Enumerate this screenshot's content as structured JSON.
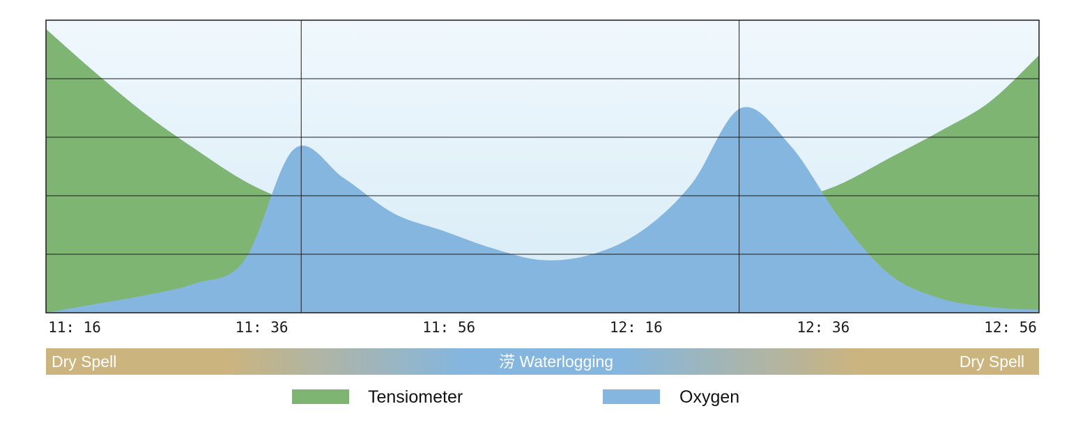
{
  "colors": {
    "plot_bg_top": "#f0f8fd",
    "plot_bg_bottom": "#d6ebf6",
    "tensiometer": "#7fb573",
    "oxygen": "#84b6df",
    "grid": "#1a1a1a",
    "band_dry": "#ccb47e",
    "band_wet": "#84b6df"
  },
  "chart_data": {
    "type": "area",
    "x_ticks": [
      "11: 16",
      "11: 36",
      "11: 56",
      "12: 16",
      "12: 36",
      "12: 56"
    ],
    "xlim": [
      0,
      100
    ],
    "ylim": [
      0,
      100
    ],
    "grid": true,
    "gridlines_y": [
      20,
      40,
      60,
      80
    ],
    "gridlines_x": [
      25.7,
      69.8
    ],
    "series": [
      {
        "name": "Tensiometer",
        "x": [
          0,
          5,
          10,
          15,
          20,
          25,
          30,
          35,
          40,
          45,
          50,
          55,
          60,
          65,
          70,
          75,
          80,
          85,
          90,
          95,
          100
        ],
        "values": [
          97,
          82,
          68,
          56,
          45,
          37,
          29,
          22,
          15,
          14,
          16,
          19,
          23,
          28,
          32,
          38,
          44,
          53,
          62,
          72,
          88
        ]
      },
      {
        "name": "Oxygen",
        "x": [
          0,
          5,
          10,
          15,
          20,
          25,
          30,
          35,
          40,
          45,
          50,
          55,
          60,
          65,
          70,
          75,
          80,
          85,
          90,
          95,
          100
        ],
        "values": [
          0,
          3,
          6,
          10,
          18,
          56,
          46,
          34,
          28,
          22,
          18,
          20,
          28,
          44,
          70,
          57,
          32,
          13,
          5,
          2,
          1
        ]
      }
    ]
  },
  "band": {
    "left_label": "Dry Spell",
    "center_label": "涝 Waterlogging",
    "right_label": "Dry Spell"
  },
  "legend": [
    {
      "label": "Tensiometer",
      "color": "#7fb573"
    },
    {
      "label": "Oxygen",
      "color": "#84b6df"
    }
  ]
}
